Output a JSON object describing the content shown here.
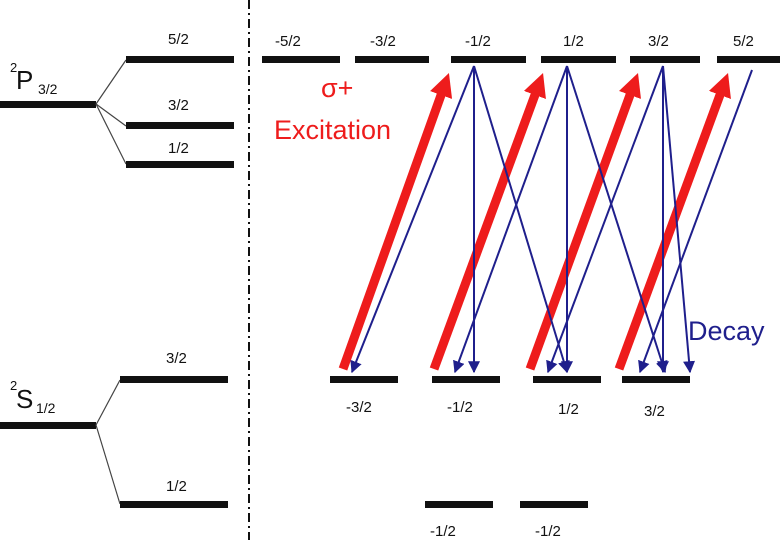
{
  "colors": {
    "excitation": "#ee1c1c",
    "decay": "#1f1f8c",
    "level": "#111111"
  },
  "left_panel": {
    "p_state": {
      "sup": "2",
      "letter": "P",
      "sub": "3/2",
      "sublevels": [
        "5/2",
        "3/2",
        "1/2"
      ]
    },
    "s_state": {
      "sup": "2",
      "letter": "S",
      "sub": "1/2",
      "sublevels": [
        "3/2",
        "1/2"
      ]
    }
  },
  "upper_levels": [
    "-5/2",
    "-3/2",
    "-1/2",
    "1/2",
    "3/2",
    "5/2"
  ],
  "lower_levels": [
    "-3/2",
    "-1/2",
    "1/2",
    "3/2"
  ],
  "bottom_levels": [
    "-1/2",
    "-1/2"
  ],
  "excitation": {
    "line1": "σ+",
    "line2": "Excitation"
  },
  "decay": {
    "label": "Decay"
  }
}
